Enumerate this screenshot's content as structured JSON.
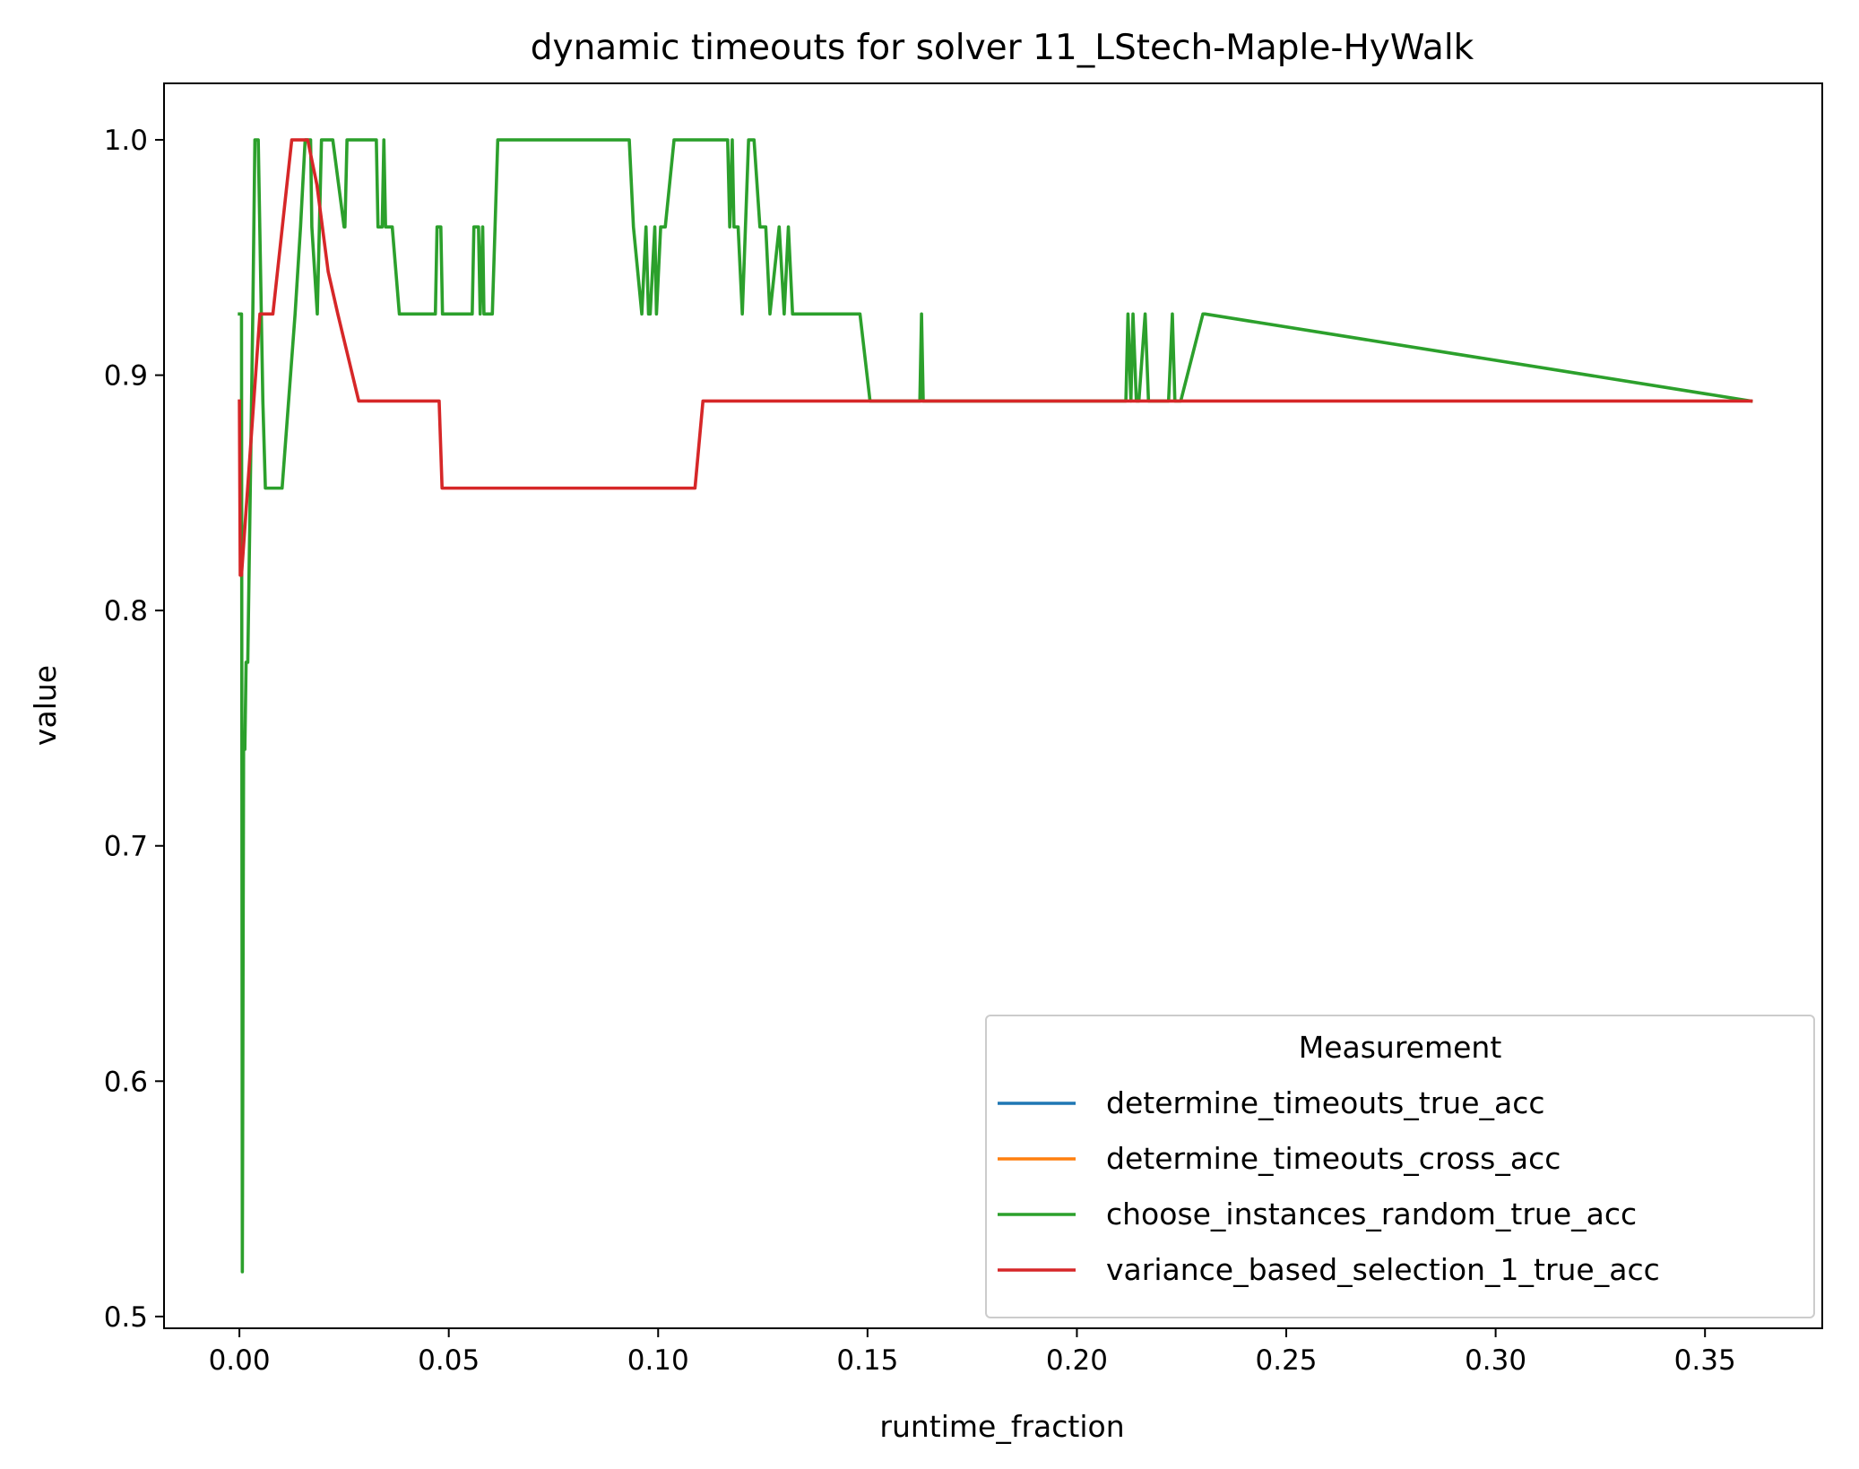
{
  "chart_data": {
    "type": "line",
    "title": "dynamic timeouts for solver 11_LStech-Maple-HyWalk",
    "xlabel": "runtime_fraction",
    "ylabel": "value",
    "xlim": [
      -0.018,
      0.378
    ],
    "ylim": [
      0.495,
      1.024
    ],
    "xticks": [
      0.0,
      0.05,
      0.1,
      0.15,
      0.2,
      0.25,
      0.3,
      0.35
    ],
    "xtick_labels": [
      "0.00",
      "0.05",
      "0.10",
      "0.15",
      "0.20",
      "0.25",
      "0.30",
      "0.35"
    ],
    "yticks": [
      0.5,
      0.6,
      0.7,
      0.8,
      0.9,
      1.0
    ],
    "ytick_labels": [
      "0.5",
      "0.6",
      "0.7",
      "0.8",
      "0.9",
      "1.0"
    ],
    "grid": false,
    "legend": {
      "title": "Measurement",
      "placement": "lower right"
    },
    "series": [
      {
        "name": "determine_timeouts_true_acc",
        "color": "#1f77b4",
        "x": [],
        "y": []
      },
      {
        "name": "determine_timeouts_cross_acc",
        "color": "#ff7f0e",
        "x": [],
        "y": []
      },
      {
        "name": "choose_instances_random_true_acc",
        "color": "#2ca02c",
        "x": [
          0.0,
          0.0005,
          0.0007,
          0.001,
          0.0013,
          0.0016,
          0.002,
          0.0026,
          0.0032,
          0.0037,
          0.0045,
          0.0056,
          0.0062,
          0.007,
          0.0077,
          0.0088,
          0.0102,
          0.0133,
          0.0146,
          0.0157,
          0.0162,
          0.017,
          0.0173,
          0.0186,
          0.0196,
          0.0206,
          0.0213,
          0.0223,
          0.025,
          0.0252,
          0.0257,
          0.0259,
          0.0264,
          0.0327,
          0.0331,
          0.0341,
          0.0345,
          0.0349,
          0.0353,
          0.0365,
          0.0382,
          0.0386,
          0.0468,
          0.0472,
          0.0481,
          0.0485,
          0.0494,
          0.0556,
          0.056,
          0.0571,
          0.0575,
          0.0581,
          0.0584,
          0.0604,
          0.0617,
          0.0931,
          0.0941,
          0.0961,
          0.0971,
          0.0977,
          0.0981,
          0.0992,
          0.0996,
          0.1006,
          0.1013,
          0.1017,
          0.1038,
          0.1048,
          0.1166,
          0.1171,
          0.1177,
          0.1181,
          0.1191,
          0.1201,
          0.1216,
          0.1223,
          0.1229,
          0.1243,
          0.1257,
          0.1267,
          0.1289,
          0.1301,
          0.1311,
          0.1321,
          0.1331,
          0.1341,
          0.1482,
          0.1506,
          0.1625,
          0.1629,
          0.1633,
          0.2117,
          0.2122,
          0.2129,
          0.2134,
          0.2142,
          0.2148,
          0.2163,
          0.2171,
          0.2219,
          0.2228,
          0.2234,
          0.2248,
          0.2301,
          0.2306,
          0.361
        ],
        "y": [
          0.926,
          0.926,
          0.519,
          0.741,
          0.741,
          0.778,
          0.778,
          0.852,
          0.926,
          1.0,
          1.0,
          0.889,
          0.852,
          0.852,
          0.852,
          0.852,
          0.852,
          0.926,
          0.963,
          1.0,
          1.0,
          1.0,
          0.963,
          0.926,
          1.0,
          1.0,
          1.0,
          1.0,
          0.963,
          0.963,
          1.0,
          1.0,
          1.0,
          1.0,
          0.963,
          0.963,
          1.0,
          0.963,
          0.963,
          0.963,
          0.926,
          0.926,
          0.926,
          0.963,
          0.963,
          0.926,
          0.926,
          0.926,
          0.963,
          0.963,
          0.926,
          0.963,
          0.926,
          0.926,
          1.0,
          1.0,
          0.963,
          0.926,
          0.963,
          0.926,
          0.926,
          0.963,
          0.926,
          0.963,
          0.963,
          0.963,
          1.0,
          1.0,
          1.0,
          0.963,
          1.0,
          0.963,
          0.963,
          0.926,
          1.0,
          1.0,
          1.0,
          0.963,
          0.963,
          0.926,
          0.963,
          0.926,
          0.963,
          0.926,
          0.926,
          0.926,
          0.926,
          0.889,
          0.889,
          0.926,
          0.889,
          0.889,
          0.926,
          0.889,
          0.926,
          0.889,
          0.889,
          0.926,
          0.889,
          0.889,
          0.926,
          0.889,
          0.889,
          0.926,
          0.926,
          0.889
        ]
      },
      {
        "name": "variance_based_selection_1_true_acc",
        "color": "#d62728",
        "x": [
          0.0,
          0.0002,
          0.0005,
          0.0049,
          0.008,
          0.0125,
          0.0163,
          0.0185,
          0.0212,
          0.0235,
          0.0285,
          0.0477,
          0.0484,
          0.1088,
          0.1107,
          0.361
        ],
        "y": [
          0.889,
          0.815,
          0.815,
          0.926,
          0.926,
          1.0,
          1.0,
          0.981,
          0.944,
          0.926,
          0.889,
          0.889,
          0.852,
          0.852,
          0.889,
          0.889
        ]
      }
    ]
  }
}
